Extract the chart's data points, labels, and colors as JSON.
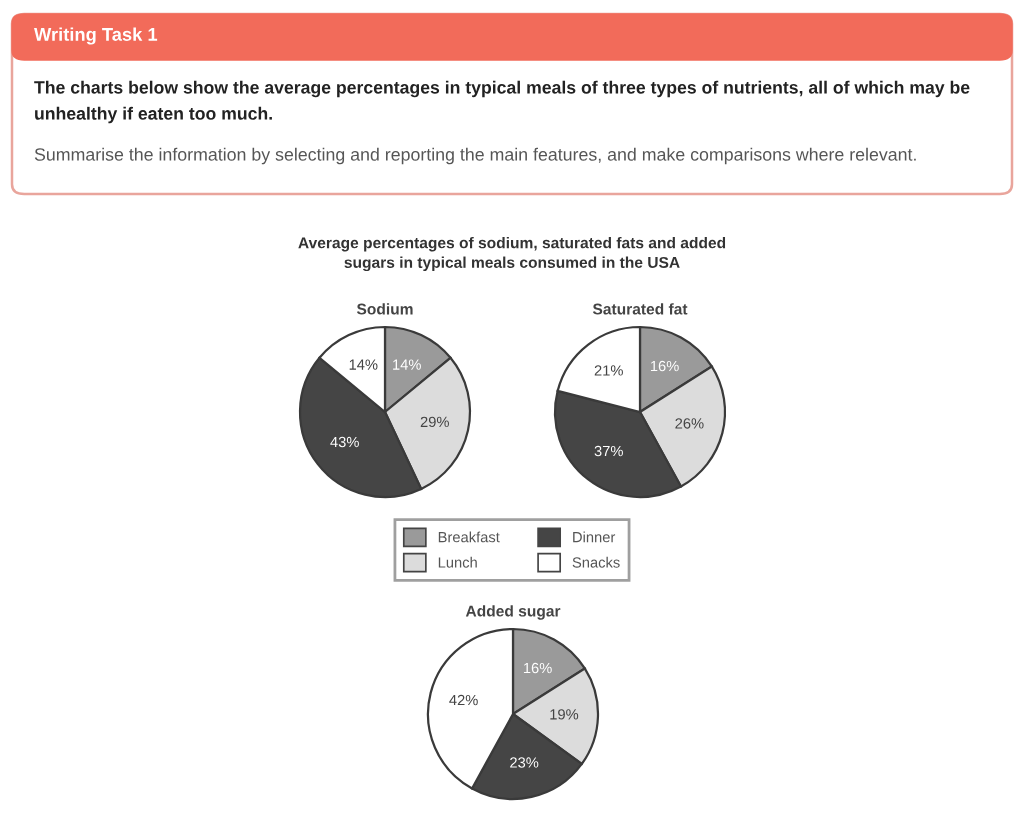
{
  "chart_data": [
    {
      "type": "pie",
      "title": "Sodium",
      "categories": [
        "Breakfast",
        "Lunch",
        "Dinner",
        "Snacks"
      ],
      "values": [
        14,
        29,
        43,
        14
      ],
      "value_labels": [
        "14%",
        "29%",
        "43%",
        "14%"
      ],
      "colors": [
        "#9a9a9a",
        "#dcdcdc",
        "#454545",
        "#ffffff"
      ],
      "legend": "bottom",
      "annotations": [
        "Writing Task 1",
        "The charts below show the average percentages in typical meals of three types of nutrients, all of which may be unhealthy if eaten too much.",
        "Summarise the information by selecting and reporting the main features, and make comparisons where relevant.",
        "Average percentages of sodium, saturated fats and added sugars in typical meals consumed in the USA"
      ]
    },
    {
      "type": "pie",
      "title": "Saturated fat",
      "values": [
        16,
        26,
        37,
        21
      ],
      "value_labels": [
        "16%",
        "26%",
        "37%",
        "21%"
      ],
      "colors": [
        "#9a9a9a",
        "#dcdcdc",
        "#454545",
        "#ffffff"
      ]
    },
    {
      "type": "pie",
      "title": "Added sugar",
      "values": [
        16,
        19,
        23,
        42
      ],
      "value_labels": [
        "16%",
        "19%",
        "23%",
        "42%"
      ],
      "colors": [
        "#9a9a9a",
        "#dcdcdc",
        "#454545",
        "#ffffff"
      ]
    }
  ]
}
